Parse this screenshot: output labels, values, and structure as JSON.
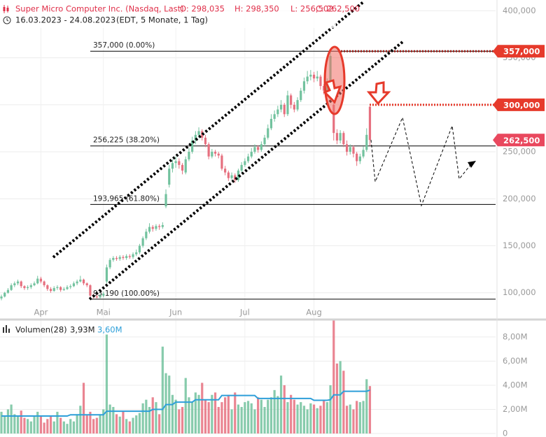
{
  "header": {
    "title": "Super Micro Computer Inc. (Nasdaq, Last)",
    "open": "O: 298,035",
    "high": "H: 298,350",
    "low": "L: 256,502",
    "close": "C: 262,500",
    "range": "16.03.2023 - 24.08.2023",
    "period": "(EDT, 5 Monate, 1 Tag)"
  },
  "chart_data": {
    "type": "candlestick",
    "up_color": "#72c29e",
    "down_color": "#e6707f",
    "open": [
      94000,
      96000,
      100000,
      103000,
      108000,
      110000,
      112000,
      107000,
      105000,
      106000,
      108000,
      110000,
      115000,
      112000,
      108000,
      104000,
      102000,
      105000,
      106000,
      103000,
      104000,
      106000,
      107000,
      110000,
      112000,
      114000,
      110000,
      108000,
      97000,
      96000,
      95000,
      97000,
      112000,
      127000,
      135000,
      137000,
      136000,
      138000,
      137000,
      139000,
      138000,
      141000,
      143000,
      150000,
      158000,
      165000,
      170000,
      168000,
      171000,
      170000,
      192000,
      215000,
      232000,
      238000,
      240000,
      236000,
      228000,
      242000,
      250000,
      262000,
      268000,
      272000,
      265000,
      258000,
      245000,
      250000,
      248000,
      246000,
      232000,
      228000,
      222000,
      225000,
      220000,
      230000,
      236000,
      240000,
      245000,
      250000,
      255000,
      252000,
      258000,
      265000,
      275000,
      285000,
      290000,
      295000,
      300000,
      290000,
      310000,
      300000,
      295000,
      305000,
      315000,
      325000,
      330000,
      332000,
      328000,
      330000,
      320000,
      315000,
      325000,
      300000,
      270000,
      262000,
      270000,
      258000,
      250000,
      255000,
      248000,
      240000,
      245000,
      252000,
      298035
    ],
    "high": [
      98000,
      101000,
      105000,
      110000,
      112000,
      114000,
      113000,
      108000,
      108000,
      110000,
      112000,
      118000,
      117000,
      113000,
      109000,
      106000,
      107000,
      108000,
      107000,
      106000,
      108000,
      109000,
      112000,
      114000,
      118000,
      115000,
      111000,
      109000,
      99000,
      98000,
      99000,
      101000,
      130000,
      137000,
      139000,
      139000,
      140000,
      140000,
      141000,
      141000,
      143000,
      146000,
      152000,
      160000,
      168000,
      174000,
      172000,
      173000,
      173000,
      175000,
      210000,
      236000,
      242000,
      245000,
      243000,
      238000,
      245000,
      254000,
      266000,
      272000,
      276000,
      274000,
      268000,
      260000,
      253000,
      252000,
      250000,
      248000,
      235000,
      230000,
      228000,
      227000,
      232000,
      239000,
      243000,
      248000,
      254000,
      258000,
      257000,
      261000,
      268000,
      279000,
      290000,
      294000,
      299000,
      305000,
      302000,
      315000,
      312000,
      303000,
      308000,
      318000,
      329000,
      336000,
      337000,
      335000,
      336000,
      332000,
      322000,
      328000,
      357000,
      305000,
      274000,
      273000,
      272000,
      262000,
      258000,
      257000,
      250000,
      248000,
      256000,
      275000,
      298350
    ],
    "low": [
      92000,
      95000,
      99000,
      102000,
      106000,
      108000,
      105000,
      103000,
      103000,
      104000,
      107000,
      109000,
      110000,
      106000,
      102000,
      100000,
      101000,
      103000,
      101000,
      102000,
      103000,
      104000,
      106000,
      108000,
      111000,
      108000,
      106000,
      93190,
      94000,
      94000,
      94000,
      95000,
      110000,
      125000,
      133000,
      134000,
      134000,
      135000,
      135000,
      136000,
      136000,
      139000,
      141000,
      148000,
      156000,
      163000,
      165000,
      166000,
      167000,
      168000,
      190000,
      212000,
      228000,
      233000,
      232000,
      226000,
      226000,
      240000,
      248000,
      258000,
      265000,
      262000,
      255000,
      242000,
      243000,
      245000,
      243000,
      230000,
      225000,
      219000,
      220000,
      217000,
      218000,
      228000,
      234000,
      238000,
      243000,
      248000,
      249000,
      250000,
      256000,
      263000,
      273000,
      282000,
      287000,
      292000,
      287000,
      288000,
      296000,
      292000,
      293000,
      303000,
      312000,
      322000,
      326000,
      324000,
      325000,
      316000,
      311000,
      312000,
      322000,
      262000,
      258000,
      259000,
      255000,
      246000,
      247000,
      244000,
      235000,
      237000,
      243000,
      250000,
      256502
    ],
    "close": [
      96000,
      100000,
      103000,
      108000,
      110000,
      112000,
      107000,
      105000,
      106000,
      108000,
      110000,
      115000,
      112000,
      108000,
      104000,
      102000,
      105000,
      106000,
      103000,
      104000,
      106000,
      107000,
      110000,
      112000,
      114000,
      110000,
      108000,
      97000,
      96000,
      95000,
      97000,
      99000,
      127000,
      135000,
      137000,
      136000,
      138000,
      137000,
      139000,
      138000,
      141000,
      143000,
      150000,
      158000,
      165000,
      170000,
      168000,
      171000,
      170000,
      172000,
      205000,
      232000,
      238000,
      240000,
      236000,
      230000,
      242000,
      250000,
      262000,
      268000,
      272000,
      265000,
      258000,
      245000,
      250000,
      248000,
      246000,
      232000,
      228000,
      222000,
      225000,
      220000,
      230000,
      236000,
      240000,
      245000,
      250000,
      255000,
      252000,
      258000,
      265000,
      275000,
      285000,
      290000,
      295000,
      300000,
      290000,
      310000,
      300000,
      295000,
      305000,
      315000,
      325000,
      330000,
      332000,
      328000,
      330000,
      320000,
      315000,
      325000,
      352000,
      270000,
      262000,
      270000,
      258000,
      250000,
      255000,
      248000,
      240000,
      245000,
      252000,
      268000,
      262500
    ],
    "xlim": [
      -0.43,
      150.2
    ],
    "xticks": [
      {
        "value": 12,
        "label": "Apr"
      },
      {
        "value": 31,
        "label": "Mai"
      },
      {
        "value": 53,
        "label": "Jun"
      },
      {
        "value": 74,
        "label": "Jul"
      },
      {
        "value": 95,
        "label": "Aug"
      }
    ],
    "ylim": [
      73000,
      410000
    ],
    "yticks": [
      {
        "value": 100000,
        "label": "100,000"
      },
      {
        "value": 150000,
        "label": "150,000"
      },
      {
        "value": 200000,
        "label": "200,000"
      },
      {
        "value": 250000,
        "label": "250,000"
      },
      {
        "value": 300000,
        "label": "300,000"
      },
      {
        "value": 350000,
        "label": "350,000"
      },
      {
        "value": 400000,
        "label": "400,000"
      }
    ],
    "grid": true,
    "fib_levels": [
      {
        "value": 357000,
        "label": "357,000 (0.00%)"
      },
      {
        "value": 256225,
        "label": "256,225 (38.20%)"
      },
      {
        "value": 193965,
        "label": "193,965 (61.80%)"
      },
      {
        "value": 93190,
        "label": "93,190 (100.00%)"
      }
    ],
    "price_levels": [
      {
        "value": 357000,
        "label": "357,000",
        "color": "#e63a2b"
      },
      {
        "value": 300000,
        "label": "300,000",
        "color": "#e63a2b"
      },
      {
        "value": 262500,
        "label": "262,500",
        "color": "#e9485e"
      }
    ],
    "volume": {
      "name": "Volumen(28)",
      "value_label": "3,93M",
      "values": [
        1800000,
        1400000,
        2000000,
        2400000,
        1600000,
        1500000,
        1900000,
        1300000,
        1200000,
        1000000,
        1400000,
        1800000,
        1500000,
        900000,
        1200000,
        1400000,
        1000000,
        1800000,
        1300000,
        1000000,
        800000,
        1200000,
        1000000,
        1600000,
        2300000,
        4200000,
        1500000,
        1800000,
        1200000,
        1300000,
        1600000,
        2000000,
        8200000,
        2400000,
        2200000,
        1600000,
        1400000,
        1800000,
        1200000,
        1000000,
        1300000,
        1500000,
        1700000,
        2500000,
        2800000,
        2200000,
        3000000,
        2600000,
        1600000,
        7200000,
        5000000,
        4800000,
        3200000,
        2800000,
        2000000,
        2200000,
        4600000,
        3000000,
        2600000,
        3400000,
        3200000,
        4200000,
        2800000,
        2600000,
        3200000,
        3400000,
        2200000,
        2600000,
        3000000,
        3200000,
        2000000,
        3400000,
        2400000,
        2200000,
        2600000,
        2700000,
        2500000,
        2000000,
        3000000,
        2800000,
        2200000,
        2800000,
        3000000,
        3600000,
        3100000,
        4800000,
        4000000,
        2600000,
        3200000,
        2800000,
        2400000,
        2600000,
        2300000,
        2000000,
        2500000,
        2400000,
        2100000,
        2300000,
        2800000,
        2600000,
        4000000,
        9400000,
        5800000,
        6000000,
        5200000,
        2300000,
        2400000,
        2000000,
        2700000,
        2600000,
        2700000,
        4500000,
        3930000
      ],
      "average": {
        "value_label": "3,60M",
        "color": "#2e9fd9",
        "values": [
          1450000,
          1450000,
          1450000,
          1450000,
          1450000,
          1450000,
          1450000,
          1450000,
          1450000,
          1450000,
          1450000,
          1450000,
          1450000,
          1450000,
          1450000,
          1450000,
          1450000,
          1450000,
          1450000,
          1450000,
          1450000,
          1550000,
          1550000,
          1550000,
          1550000,
          1550000,
          1550000,
          1550000,
          1550000,
          1550000,
          1550000,
          1550000,
          1850000,
          1850000,
          1850000,
          1850000,
          1850000,
          1850000,
          1850000,
          1850000,
          1850000,
          1850000,
          1850000,
          1850000,
          1850000,
          1850000,
          2000000,
          2000000,
          2000000,
          2000000,
          2400000,
          2400000,
          2400000,
          2600000,
          2600000,
          2600000,
          2600000,
          2600000,
          2600000,
          2800000,
          2800000,
          2800000,
          2800000,
          2800000,
          2800000,
          2800000,
          2800000,
          3150000,
          3150000,
          3150000,
          3150000,
          3150000,
          3150000,
          3150000,
          3150000,
          3150000,
          3150000,
          3150000,
          2900000,
          2900000,
          2900000,
          2900000,
          2900000,
          2900000,
          2900000,
          2900000,
          2900000,
          2900000,
          2900000,
          2900000,
          2900000,
          2900000,
          2900000,
          2900000,
          2900000,
          2750000,
          2750000,
          2750000,
          2750000,
          2750000,
          2800000,
          3200000,
          3200000,
          3200000,
          3500000,
          3500000,
          3500000,
          3500000,
          3500000,
          3500000,
          3500000,
          3500000,
          3600000
        ]
      },
      "ylim": [
        0,
        9270000
      ],
      "yticks": [
        0,
        {
          "value": 2000000,
          "label": "2,00M"
        },
        {
          "value": 4000000,
          "label": "4,00M"
        },
        {
          "value": 6000000,
          "label": "6,00M"
        },
        {
          "value": 8000000,
          "label": "8,00M"
        }
      ]
    }
  }
}
